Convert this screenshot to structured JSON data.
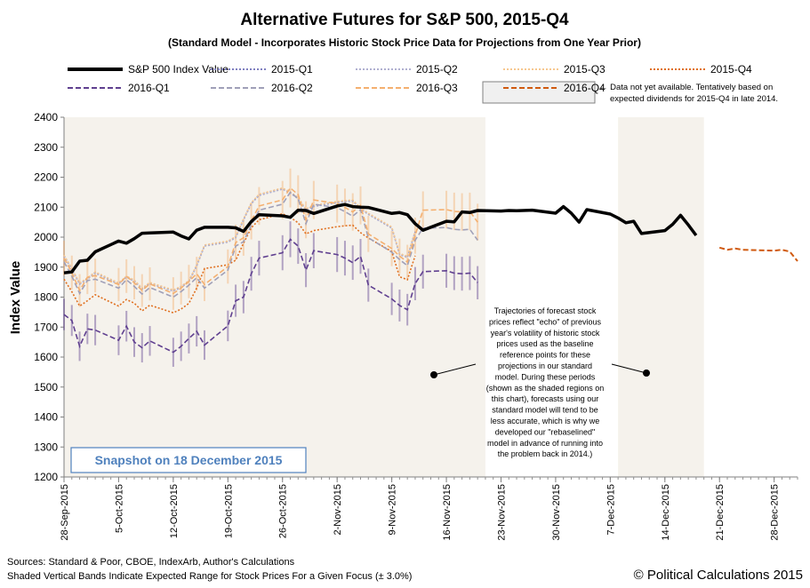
{
  "chart_data": {
    "type": "line",
    "title": "Alternative Futures for S&P 500, 2015-Q4",
    "subtitle": "(Standard Model - Incorporates Historic Stock Price Data for Projections from One Year Prior)",
    "ylabel": "Index Value",
    "ylim": [
      1200,
      2400
    ],
    "yticks": [
      1200,
      1300,
      1400,
      1500,
      1600,
      1700,
      1800,
      1900,
      2000,
      2100,
      2200,
      2300,
      2400
    ],
    "x_start": "28-Sep-2015",
    "x_end": "31-Dec-2015",
    "xtick_labels": [
      "28-Sep-2015",
      "5-Oct-2015",
      "12-Oct-2015",
      "19-Oct-2015",
      "26-Oct-2015",
      "2-Nov-2015",
      "9-Nov-2015",
      "16-Nov-2015",
      "23-Nov-2015",
      "30-Nov-2015",
      "7-Dec-2015",
      "14-Dec-2015",
      "21-Dec-2015",
      "28-Dec-2015"
    ],
    "shaded_regions": [
      [
        "28-Sep-2015",
        "20-Nov-2015"
      ],
      [
        "8-Dec-2015",
        "18-Dec-2015"
      ]
    ],
    "band_pct": 3.0,
    "sp500": {
      "name": "S&P 500 Index Value",
      "points": [
        [
          "28-Sep-2015",
          1881
        ],
        [
          "29-Sep-2015",
          1884
        ],
        [
          "30-Sep-2015",
          1920
        ],
        [
          "1-Oct-2015",
          1923
        ],
        [
          "2-Oct-2015",
          1951
        ],
        [
          "5-Oct-2015",
          1987
        ],
        [
          "6-Oct-2015",
          1980
        ],
        [
          "7-Oct-2015",
          1995
        ],
        [
          "8-Oct-2015",
          2013
        ],
        [
          "9-Oct-2015",
          2014
        ],
        [
          "12-Oct-2015",
          2017
        ],
        [
          "13-Oct-2015",
          2004
        ],
        [
          "14-Oct-2015",
          1994
        ],
        [
          "15-Oct-2015",
          2023
        ],
        [
          "16-Oct-2015",
          2033
        ],
        [
          "19-Oct-2015",
          2033
        ],
        [
          "20-Oct-2015",
          2031
        ],
        [
          "21-Oct-2015",
          2019
        ],
        [
          "22-Oct-2015",
          2052
        ],
        [
          "23-Oct-2015",
          2075
        ],
        [
          "26-Oct-2015",
          2071
        ],
        [
          "27-Oct-2015",
          2066
        ],
        [
          "28-Oct-2015",
          2090
        ],
        [
          "29-Oct-2015",
          2089
        ],
        [
          "30-Oct-2015",
          2079
        ],
        [
          "2-Nov-2015",
          2104
        ],
        [
          "3-Nov-2015",
          2109
        ],
        [
          "4-Nov-2015",
          2102
        ],
        [
          "5-Nov-2015",
          2100
        ],
        [
          "6-Nov-2015",
          2099
        ],
        [
          "9-Nov-2015",
          2079
        ],
        [
          "10-Nov-2015",
          2082
        ],
        [
          "11-Nov-2015",
          2075
        ],
        [
          "12-Nov-2015",
          2045
        ],
        [
          "13-Nov-2015",
          2023
        ],
        [
          "16-Nov-2015",
          2053
        ],
        [
          "17-Nov-2015",
          2051
        ],
        [
          "18-Nov-2015",
          2084
        ],
        [
          "19-Nov-2015",
          2082
        ],
        [
          "20-Nov-2015",
          2089
        ],
        [
          "23-Nov-2015",
          2087
        ],
        [
          "24-Nov-2015",
          2089
        ],
        [
          "25-Nov-2015",
          2088
        ],
        [
          "27-Nov-2015",
          2090
        ],
        [
          "30-Nov-2015",
          2080
        ],
        [
          "1-Dec-2015",
          2102
        ],
        [
          "2-Dec-2015",
          2080
        ],
        [
          "3-Dec-2015",
          2050
        ],
        [
          "4-Dec-2015",
          2092
        ],
        [
          "7-Dec-2015",
          2077
        ],
        [
          "8-Dec-2015",
          2064
        ],
        [
          "9-Dec-2015",
          2048
        ],
        [
          "10-Dec-2015",
          2053
        ],
        [
          "11-Dec-2015",
          2012
        ],
        [
          "14-Dec-2015",
          2022
        ],
        [
          "15-Dec-2015",
          2043
        ],
        [
          "16-Dec-2015",
          2073
        ],
        [
          "17-Dec-2015",
          2041
        ],
        [
          "18-Dec-2015",
          2006
        ]
      ]
    },
    "series": [
      {
        "name": "2015-Q1",
        "color": "#8080c0",
        "dash": "dot",
        "values": [
          1938,
          1894,
          1845,
          1862,
          1882,
          1845,
          1868,
          1855,
          1828,
          1847,
          1822,
          1834,
          1853,
          1905,
          1972,
          1985,
          2000,
          2059,
          2113,
          2141,
          2162,
          2149,
          2130,
          2092,
          2104,
          2117,
          2120,
          2122,
          2096,
          2078,
          2032,
          1944,
          1934,
          2018
        ]
      },
      {
        "name": "2015-Q2",
        "color": "#b0b0d0",
        "dash": "dot",
        "values": [
          1936,
          1892,
          1843,
          1860,
          1880,
          1843,
          1866,
          1853,
          1826,
          1845,
          1820,
          1832,
          1851,
          1903,
          1970,
          1983,
          1998,
          2057,
          2111,
          2139,
          2160,
          2147,
          2128,
          2090,
          2102,
          2115,
          2118,
          2120,
          2094,
          2076,
          2030,
          1942,
          1932,
          2016
        ]
      },
      {
        "name": "2015-Q3",
        "color": "#f6c890",
        "dash": "dot",
        "values": [
          1940,
          1896,
          1847,
          1864,
          1884,
          1847,
          1870,
          1857,
          1830,
          1849,
          1824,
          1836,
          1855,
          1907,
          1974,
          1987,
          2002,
          2061,
          2115,
          2143,
          2164,
          2151,
          2132,
          2094,
          2106,
          2119,
          2122,
          2124,
          2098,
          2080,
          2034,
          1946,
          1936,
          2020
        ]
      },
      {
        "name": "2015-Q4",
        "color": "#e07020",
        "dash": "dot",
        "values": [
          1860,
          1818,
          1770,
          1788,
          1808,
          1770,
          1792,
          1780,
          1754,
          1773,
          1748,
          1760,
          1779,
          1830,
          1895,
          1908,
          1923,
          1980,
          2031,
          2058,
          2078,
          2066,
          2048,
          2011,
          2022,
          2035,
          2038,
          2040,
          2015,
          1997,
          1952,
          1868,
          1858,
          1938
        ]
      },
      {
        "name": "2016-Q1",
        "color": "#604090",
        "dash": "dash",
        "values": [
          1742,
          1722,
          1636,
          1694,
          1690,
          1656,
          1703,
          1650,
          1631,
          1654,
          1616,
          1636,
          1662,
          1686,
          1640,
          1704,
          1788,
          1800,
          1878,
          1930,
          1948,
          1993,
          1970,
          1890,
          1955,
          1942,
          1930,
          1915,
          1936,
          1840,
          1794,
          1772,
          1758,
          1845,
          1885,
          1888,
          1880,
          1878,
          1880,
          1848
        ]
      },
      {
        "name": "2016-Q2",
        "color": "#a0a0b8",
        "dash": "dash",
        "values": [
          1918,
          1870,
          1812,
          1855,
          1860,
          1830,
          1858,
          1836,
          1810,
          1832,
          1800,
          1818,
          1840,
          1865,
          1830,
          1890,
          1970,
          1985,
          2040,
          2090,
          2110,
          2150,
          2128,
          2045,
          2110,
          2098,
          2085,
          2070,
          2092,
          1998,
          1950,
          1925,
          1905,
          1990,
          2030,
          2032,
          2026,
          2024,
          2026,
          1990
        ]
      },
      {
        "name": "2016-Q3",
        "color": "#f4b070",
        "dash": "dash",
        "values": [
          1930,
          1882,
          1822,
          1866,
          1872,
          1842,
          1870,
          1848,
          1822,
          1844,
          1812,
          1830,
          1852,
          1878,
          1842,
          1902,
          1982,
          1998,
          2054,
          2104,
          2124,
          2164,
          2142,
          2058,
          2124,
          2112,
          2099,
          2084,
          2106,
          2011,
          1962,
          1937,
          1917,
          2005,
          2090,
          2092,
          2086,
          2084,
          2086,
          2050
        ]
      },
      {
        "name": "2016-Q4",
        "color": "#d05a10",
        "dash": "dash",
        "values": [
          1965,
          1958,
          1962,
          1958,
          1955,
          1958,
          1952,
          1920
        ]
      }
    ],
    "legend_note": "← Data not yet available. Tentatively based on expected dividends for 2015-Q4 in late 2014.",
    "annotation": [
      "Trajectories of forecast stock",
      "prices reflect \"echo\" of previous",
      "year's volatility of historic stock",
      "prices used as the baseline",
      "reference points for these",
      "projections in our standard",
      "model.   During these periods",
      "(shown as the shaded regions on",
      "this chart), forecasts using our",
      "standard model will tend to be",
      "less accurate, which is why we",
      "developed our \"rebaselined\"",
      "model in advance of running into",
      "the problem back in 2014.)"
    ],
    "snapshot": "Snapshot on 18 December 2015"
  },
  "footer": {
    "sources": "Sources: Standard & Poor, CBOE, IndexArb, Author's Calculations",
    "bands_note": "Shaded Vertical Bands Indicate Expected Range for Stock Prices For a Given Focus (± 3.0%)",
    "copyright": "© Political Calculations 2015"
  }
}
